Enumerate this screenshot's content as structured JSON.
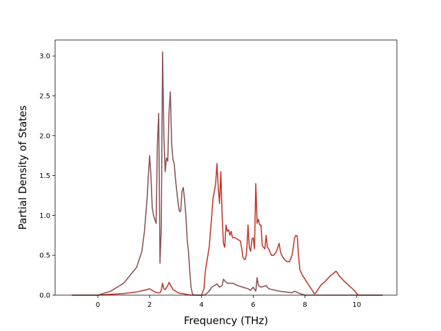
{
  "chart_data": {
    "type": "line",
    "xlabel": "Frequency (THz)",
    "ylabel": "Partial Density of States",
    "xlim": [
      -1.65,
      11.55
    ],
    "ylim": [
      0,
      3.2
    ],
    "xticks": [
      "0",
      "2",
      "4",
      "6",
      "8",
      "10"
    ],
    "yticks": [
      "0.0",
      "0.5",
      "1.0",
      "1.5",
      "2.0",
      "2.5",
      "3.0"
    ],
    "grid": false,
    "legend": "none",
    "series": [
      {
        "color": "#c0392b",
        "x": [
          -1.0,
          0.0,
          0.5,
          1.0,
          1.5,
          1.9,
          2.0,
          2.1,
          2.2,
          2.3,
          2.4,
          2.45,
          2.5,
          2.55,
          2.6,
          2.7,
          2.75,
          2.8,
          2.85,
          2.9,
          3.0,
          3.1,
          3.2,
          3.3,
          3.4,
          3.5,
          3.6,
          3.65,
          3.7,
          3.8,
          4.0,
          4.1,
          4.15,
          4.2,
          4.25,
          4.3,
          4.35,
          4.4,
          4.45,
          4.5,
          4.55,
          4.6,
          4.65,
          4.7,
          4.75,
          4.8,
          4.85,
          4.9,
          4.95,
          5.0,
          5.05,
          5.1,
          5.15,
          5.2,
          5.3,
          5.4,
          5.5,
          5.55,
          5.6,
          5.65,
          5.7,
          5.75,
          5.8,
          5.85,
          5.9,
          5.95,
          6.0,
          6.05,
          6.1,
          6.15,
          6.2,
          6.25,
          6.3,
          6.35,
          6.4,
          6.45,
          6.5,
          6.55,
          6.6,
          6.7,
          6.8,
          6.9,
          7.0,
          7.05,
          7.1,
          7.2,
          7.3,
          7.4,
          7.5,
          7.6,
          7.65,
          7.7,
          7.75,
          7.8,
          7.9,
          8.0,
          8.1,
          8.2,
          8.3,
          8.35,
          8.4,
          8.5,
          8.6,
          8.8,
          9.0,
          9.2,
          9.25,
          9.3,
          9.5,
          9.7,
          9.9,
          10.0,
          10.05,
          10.2,
          11.0
        ],
        "y": [
          0.0,
          0.0,
          0.01,
          0.02,
          0.04,
          0.07,
          0.08,
          0.06,
          0.04,
          0.03,
          0.03,
          0.06,
          0.15,
          0.08,
          0.07,
          0.12,
          0.16,
          0.13,
          0.1,
          0.07,
          0.05,
          0.03,
          0.02,
          0.02,
          0.01,
          0.005,
          0.0,
          0.0,
          0.0,
          0.0,
          0.0,
          0.08,
          0.3,
          0.4,
          0.5,
          0.6,
          0.8,
          1.0,
          1.22,
          1.3,
          1.4,
          1.65,
          1.35,
          1.15,
          1.55,
          1.0,
          0.65,
          0.6,
          0.88,
          0.8,
          0.82,
          0.75,
          0.8,
          0.72,
          0.72,
          0.7,
          0.68,
          0.6,
          0.48,
          0.45,
          0.45,
          0.55,
          0.88,
          0.6,
          0.55,
          0.7,
          0.72,
          0.58,
          1.4,
          0.9,
          0.95,
          0.88,
          0.88,
          0.62,
          0.6,
          0.58,
          0.75,
          0.6,
          0.58,
          0.5,
          0.5,
          0.55,
          0.65,
          0.55,
          0.5,
          0.45,
          0.42,
          0.42,
          0.5,
          0.72,
          0.75,
          0.74,
          0.5,
          0.32,
          0.25,
          0.2,
          0.15,
          0.1,
          0.05,
          0.02,
          0.02,
          0.07,
          0.12,
          0.18,
          0.25,
          0.3,
          0.28,
          0.25,
          0.18,
          0.12,
          0.06,
          0.02,
          0.0,
          0.0,
          0.0
        ]
      },
      {
        "color": "#8b5355",
        "x": [
          -1.0,
          0.0,
          0.5,
          1.0,
          1.5,
          1.7,
          1.8,
          1.9,
          1.95,
          2.0,
          2.05,
          2.1,
          2.15,
          2.2,
          2.25,
          2.3,
          2.35,
          2.4,
          2.45,
          2.5,
          2.55,
          2.6,
          2.65,
          2.7,
          2.75,
          2.8,
          2.85,
          2.9,
          2.95,
          3.0,
          3.05,
          3.1,
          3.15,
          3.2,
          3.25,
          3.3,
          3.35,
          3.4,
          3.45,
          3.5,
          3.55,
          3.6,
          3.65,
          3.7,
          3.8,
          4.0,
          4.1,
          4.2,
          4.3,
          4.4,
          4.5,
          4.6,
          4.7,
          4.8,
          4.85,
          4.9,
          5.0,
          5.2,
          5.4,
          5.6,
          5.8,
          5.9,
          6.0,
          6.1,
          6.15,
          6.2,
          6.3,
          6.5,
          6.6,
          7.0,
          7.5,
          7.6,
          7.8,
          8.0,
          8.3,
          8.5,
          9.0,
          10.0,
          10.5,
          11.0
        ],
        "y": [
          0.0,
          0.0,
          0.05,
          0.15,
          0.35,
          0.55,
          0.8,
          1.2,
          1.5,
          1.75,
          1.5,
          1.1,
          1.0,
          0.95,
          0.9,
          1.9,
          2.28,
          0.4,
          0.85,
          3.05,
          2.0,
          1.55,
          1.72,
          1.68,
          2.3,
          2.55,
          1.9,
          1.7,
          1.65,
          1.45,
          1.3,
          1.15,
          1.05,
          1.05,
          1.3,
          1.35,
          1.2,
          1.0,
          0.7,
          0.55,
          0.3,
          0.1,
          0.02,
          0.0,
          0.0,
          0.0,
          0.0,
          0.02,
          0.05,
          0.1,
          0.12,
          0.14,
          0.1,
          0.12,
          0.2,
          0.18,
          0.15,
          0.15,
          0.12,
          0.1,
          0.08,
          0.06,
          0.1,
          0.05,
          0.22,
          0.12,
          0.1,
          0.12,
          0.08,
          0.05,
          0.03,
          0.05,
          0.02,
          0.0,
          0.0,
          0.0,
          0.0,
          0.0,
          0.0,
          0.0
        ]
      }
    ]
  }
}
